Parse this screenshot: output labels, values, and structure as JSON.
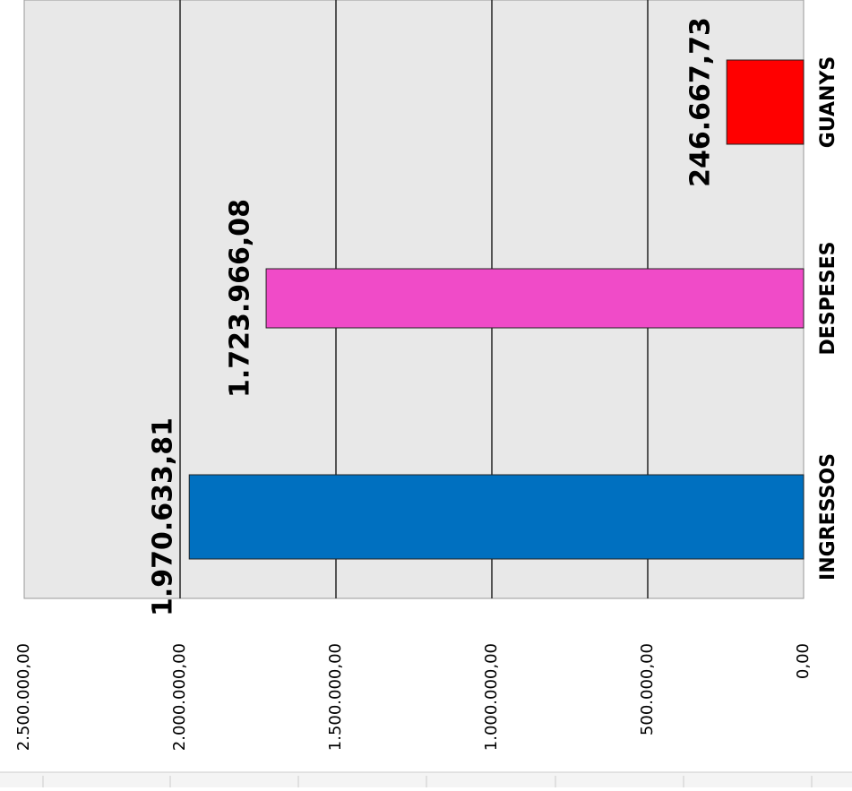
{
  "chart_data": {
    "type": "bar",
    "categories": [
      "INGRESSOS",
      "DESPESES",
      "GUANYS"
    ],
    "values": [
      1970633.81,
      1723966.08,
      246667.73
    ],
    "value_labels": [
      "1.970.633,81",
      "1.723.966,08",
      "246.667,73"
    ],
    "colors": [
      "#0070c0",
      "#f04bc8",
      "#ff0000"
    ],
    "ylim": [
      0,
      2500000
    ],
    "yticks": [
      {
        "value": 0,
        "label": "0,00"
      },
      {
        "value": 500000,
        "label": "500.000,00"
      },
      {
        "value": 1000000,
        "label": "1.000.000,00"
      },
      {
        "value": 1500000,
        "label": "1.500.000,00"
      },
      {
        "value": 2000000,
        "label": "2.000.000,00"
      },
      {
        "value": 2500000,
        "label": "2.500.000,00"
      }
    ],
    "grid": true
  }
}
